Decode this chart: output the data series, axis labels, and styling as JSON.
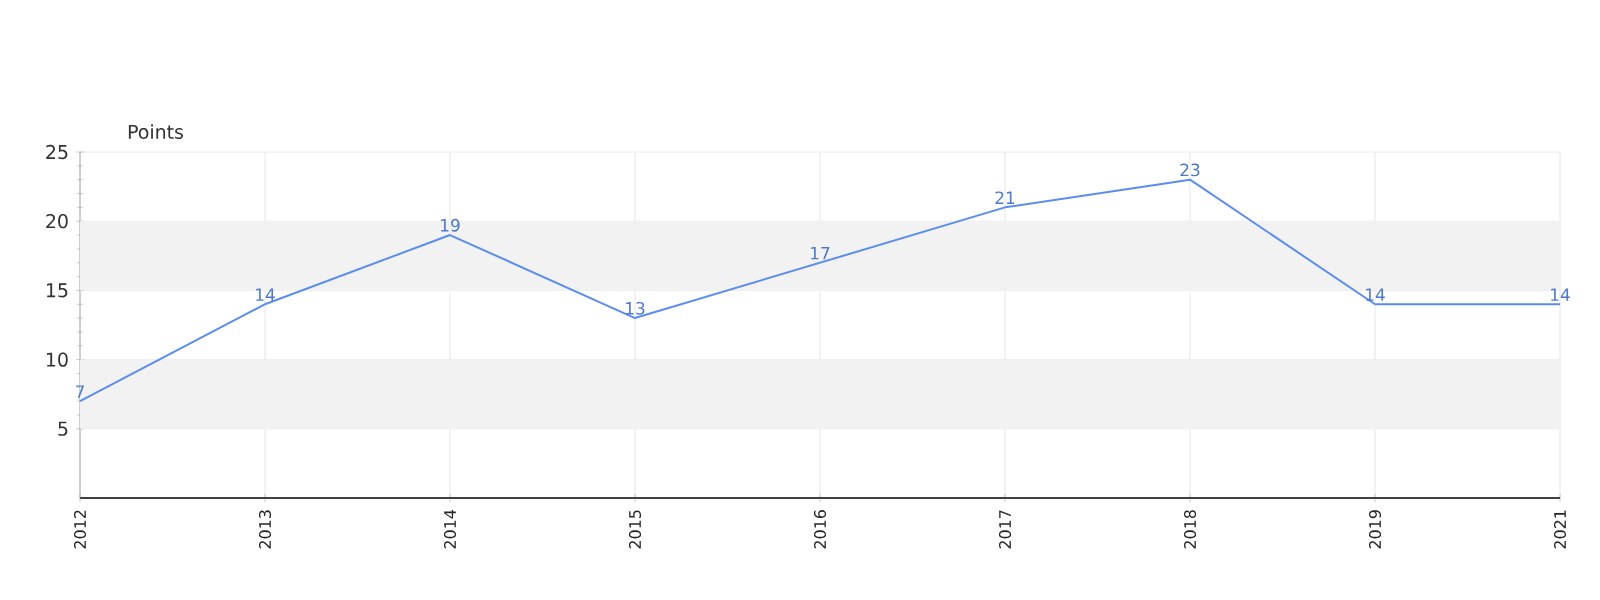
{
  "chart_data": {
    "type": "line",
    "ylabel": "Points",
    "categories": [
      "2012",
      "2013",
      "2014",
      "2015",
      "2016",
      "2017",
      "2018",
      "2019",
      "2021"
    ],
    "values": [
      7,
      14,
      19,
      13,
      17,
      21,
      23,
      14,
      14
    ],
    "color": "#5b8def",
    "ylim": [
      0,
      25
    ],
    "yticks": [
      5,
      10,
      15,
      20,
      25
    ],
    "bands": [
      {
        "axis": "y",
        "from": 5,
        "to": 10,
        "color": "#f2f2f2"
      },
      {
        "axis": "y",
        "from": 15,
        "to": 20,
        "color": "#f2f2f2"
      }
    ],
    "grid": true,
    "data_labels": true,
    "marker": "none",
    "line_style": "solid"
  }
}
